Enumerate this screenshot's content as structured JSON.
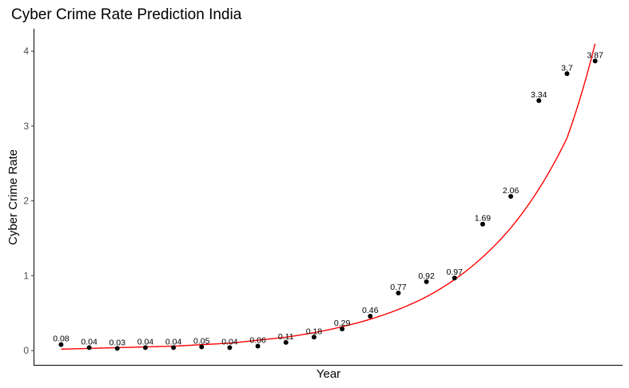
{
  "chart_data": {
    "type": "scatter",
    "title": "Cyber Crime Rate Prediction India",
    "xlabel": "Year",
    "ylabel": "Cyber Crime Rate",
    "y_ticks": [
      0,
      1,
      2,
      3,
      4
    ],
    "ylim": [
      -0.19,
      4.3
    ],
    "xlim": [
      0.05,
      20.95
    ],
    "x_tick_labels_shown": false,
    "grid": false,
    "legend": "none",
    "colors": {
      "points": "#000000",
      "fit_line": "#ff0000"
    },
    "points": {
      "x": [
        1,
        2,
        3,
        4,
        5,
        6,
        7,
        8,
        9,
        10,
        11,
        12,
        13,
        14,
        15,
        16,
        17,
        18,
        19,
        20
      ],
      "values": [
        0.08,
        0.04,
        0.03,
        0.04,
        0.04,
        0.05,
        0.04,
        0.06,
        0.11,
        0.18,
        0.29,
        0.46,
        0.77,
        0.92,
        0.97,
        1.69,
        2.06,
        3.34,
        3.7,
        3.87
      ],
      "labels": [
        "0.08",
        "0.04",
        "0.03",
        "0.04",
        "0.04",
        "0.05",
        "0.04",
        "0.06",
        "0.11",
        "0.18",
        "0.29",
        "0.46",
        "0.77",
        "0.92",
        "0.97",
        "1.69",
        "2.06",
        "3.34",
        "3.7",
        "3.87"
      ]
    },
    "fit_line": {
      "type": "exponential",
      "x": [
        1,
        2,
        3,
        4,
        5,
        6,
        7,
        8,
        9,
        10,
        11,
        12,
        13,
        14,
        15,
        16,
        17,
        18,
        19,
        20
      ],
      "values": [
        0.02,
        0.03,
        0.04,
        0.05,
        0.06,
        0.08,
        0.1,
        0.14,
        0.18,
        0.24,
        0.32,
        0.42,
        0.55,
        0.72,
        0.95,
        1.25,
        1.64,
        2.16,
        2.84,
        4.1
      ]
    }
  }
}
